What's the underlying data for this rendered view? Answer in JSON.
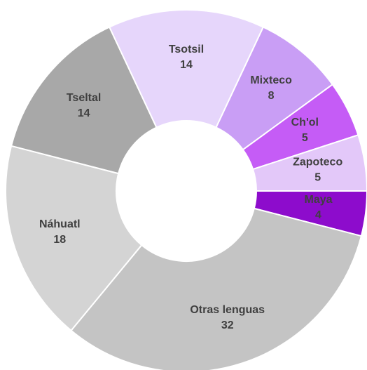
{
  "chart_data": {
    "type": "donut",
    "categories": [
      "Tsotsil",
      "Mixteco",
      "Ch'ol",
      "Zapoteco",
      "Maya",
      "Otras lenguas",
      "Náhuatl",
      "Tseltal"
    ],
    "values": [
      14,
      8,
      5,
      5,
      4,
      32,
      18,
      14
    ],
    "colors": [
      "#e6d6fb",
      "#c99ef5",
      "#c55cf6",
      "#e3c8f9",
      "#8d0ccc",
      "#c4c4c4",
      "#d4d4d4",
      "#a8a8a8"
    ],
    "label_colors": [
      "#404040",
      "#404040",
      "#404040",
      "#404040",
      "#ffffff",
      "#404040",
      "#404040",
      "#404040"
    ]
  }
}
